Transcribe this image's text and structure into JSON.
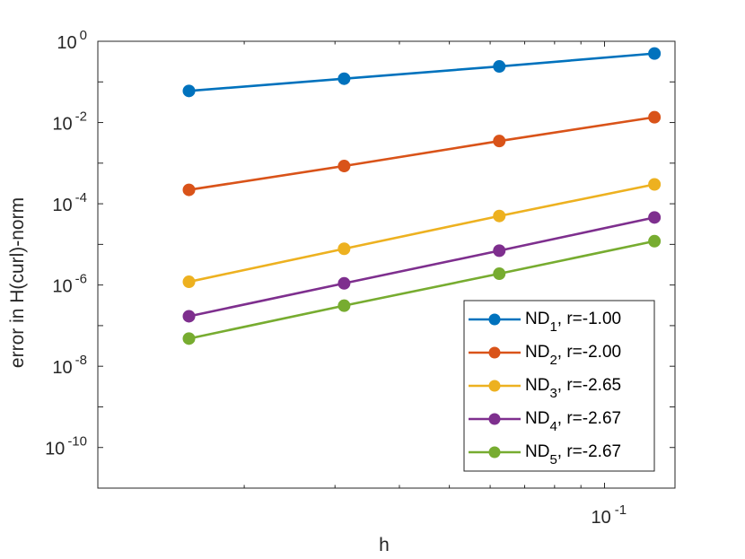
{
  "chart_data": {
    "type": "line",
    "scale": "loglog",
    "title": "",
    "xlabel": "h",
    "ylabel": "error in H(curl)-norm",
    "xlim": [
      0.0104,
      0.137
    ],
    "ylim": [
      1e-11,
      1
    ],
    "grid": false,
    "legend_position": "bottom-right",
    "x": [
      0.015625,
      0.03125,
      0.0625,
      0.125
    ],
    "x_ticks": [
      {
        "value": 0.1,
        "base": "10",
        "exp": "-1"
      }
    ],
    "y_ticks": [
      {
        "value": 1,
        "base": "10",
        "exp": "0"
      },
      {
        "value": 0.01,
        "base": "10",
        "exp": "-2"
      },
      {
        "value": 0.0001,
        "base": "10",
        "exp": "-4"
      },
      {
        "value": 1e-06,
        "base": "10",
        "exp": "-6"
      },
      {
        "value": 1e-08,
        "base": "10",
        "exp": "-8"
      },
      {
        "value": 1e-10,
        "base": "10",
        "exp": "-10"
      }
    ],
    "series": [
      {
        "name": "ND",
        "sub": "1",
        "rate": ", r=-1.00",
        "color": "#0072BD",
        "values": [
          0.06,
          0.12,
          0.24,
          0.5
        ]
      },
      {
        "name": "ND",
        "sub": "2",
        "rate": ", r=-2.00",
        "color": "#D95319",
        "values": [
          0.00022,
          0.00085,
          0.0035,
          0.0135
        ]
      },
      {
        "name": "ND",
        "sub": "3",
        "rate": ", r=-2.65",
        "color": "#EDB120",
        "values": [
          1.2e-06,
          7.8e-06,
          5e-05,
          0.0003
        ]
      },
      {
        "name": "ND",
        "sub": "4",
        "rate": ", r=-2.67",
        "color": "#7E2F8E",
        "values": [
          1.7e-07,
          1.1e-06,
          7e-06,
          4.6e-05
        ]
      },
      {
        "name": "ND",
        "sub": "5",
        "rate": ", r=-2.67",
        "color": "#77AC30",
        "values": [
          4.8e-08,
          3.1e-07,
          1.9e-06,
          1.2e-05
        ]
      }
    ]
  }
}
